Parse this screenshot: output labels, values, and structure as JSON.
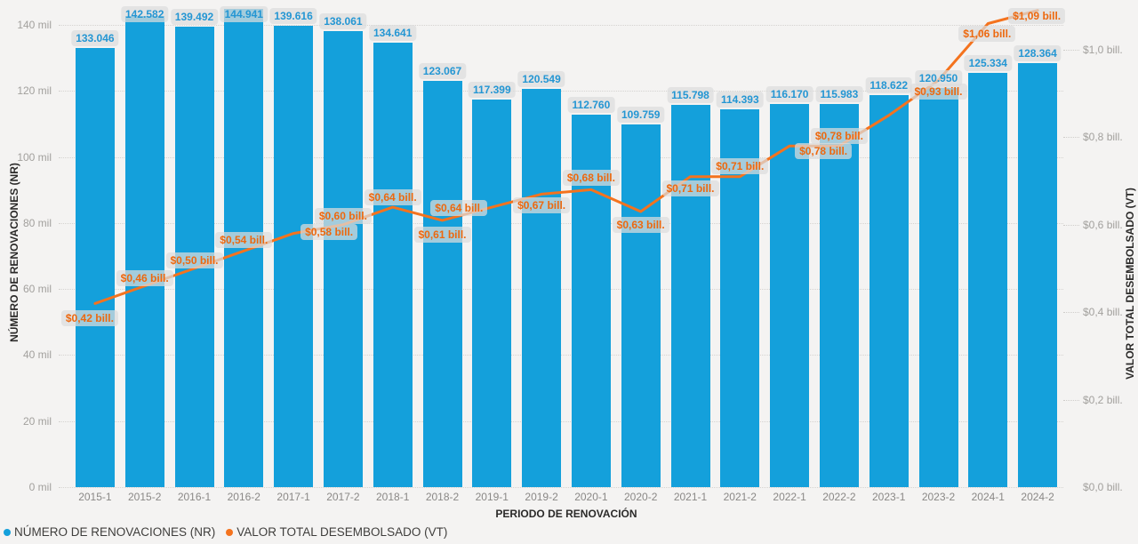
{
  "chart_data": {
    "type": "bar",
    "subtype": "column-line-combo",
    "categories": [
      "2015-1",
      "2015-2",
      "2016-1",
      "2016-2",
      "2017-1",
      "2017-2",
      "2018-1",
      "2018-2",
      "2019-1",
      "2019-2",
      "2020-1",
      "2020-2",
      "2021-1",
      "2021-2",
      "2022-1",
      "2022-2",
      "2023-1",
      "2023-2",
      "2024-1",
      "2024-2"
    ],
    "series": [
      {
        "name": "NÚMERO DE RENOVACIONES (NR)",
        "type": "bar",
        "axis": "left",
        "color": "#14a0db",
        "values": [
          133046,
          142582,
          139492,
          144941,
          139616,
          138061,
          134641,
          123067,
          117399,
          120549,
          112760,
          109759,
          115798,
          114393,
          116170,
          115983,
          118622,
          120950,
          125334,
          128364
        ],
        "labels": [
          "133.046",
          "142.582",
          "139.492",
          "144.941",
          "139.616",
          "138.061",
          "134.641",
          "123.067",
          "117.399",
          "120.549",
          "112.760",
          "109.759",
          "115.798",
          "114.393",
          "116.170",
          "115.983",
          "118.622",
          "120.950",
          "125.334",
          "128.364"
        ]
      },
      {
        "name": "VALOR TOTAL DESEMBOLSADO (VT)",
        "type": "line",
        "axis": "right",
        "color": "#f4731e",
        "values": [
          0.42,
          0.46,
          0.5,
          0.54,
          0.58,
          0.6,
          0.64,
          0.61,
          0.64,
          0.67,
          0.68,
          0.63,
          0.71,
          0.71,
          0.78,
          0.78,
          0.85,
          0.93,
          1.06,
          1.09
        ],
        "labels": [
          "$0,42 bill.",
          "$0,46 bill.",
          "$0,50 bill.",
          "$0,54 bill.",
          "$0,58 bill.",
          "$0,60 bill.",
          "$0,64 bill.",
          "$0,61 bill.",
          "$0,64 bill.",
          "$0,67 bill.",
          "$0,68 bill.",
          "$0,63 bill.",
          "$0,71 bill.",
          "$0,71 bill.",
          "$0,78 bill.",
          "$0,78 bill.",
          null,
          "$0,93 bill.",
          "$1,06 bill.",
          "$1,09 bill."
        ]
      }
    ],
    "x_axis": {
      "title": "PERIODO DE RENOVACIÓN"
    },
    "y_axis_left": {
      "title": "NÚMERO DE RENOVACIONES (NR)",
      "range_mil": [
        0,
        140
      ],
      "ticks": [
        "0 mil",
        "20 mil",
        "40 mil",
        "60 mil",
        "80 mil",
        "100 mil",
        "120 mil",
        "140 mil"
      ]
    },
    "y_axis_right": {
      "title": "VALOR TOTAL DESEMBOLSADO (VT)",
      "range_bill": [
        0.0,
        1.0
      ],
      "ticks": [
        "$0,0 bill.",
        "$0,2 bill.",
        "$0,4 bill.",
        "$0,6 bill.",
        "$0,8 bill.",
        "$1,0 bill."
      ]
    },
    "legend": [
      {
        "label": "NÚMERO DE RENOVACIONES (NR)",
        "color": "#14a0db"
      },
      {
        "label": "VALOR TOTAL DESEMBOLSADO (VT)",
        "color": "#f4731e"
      }
    ],
    "layout_hints": {
      "grid": "dotted-horizontal",
      "legend_position": "bottom-left",
      "bar_label_bg": "#e4e4e4",
      "background": "#f4f3f2"
    }
  }
}
